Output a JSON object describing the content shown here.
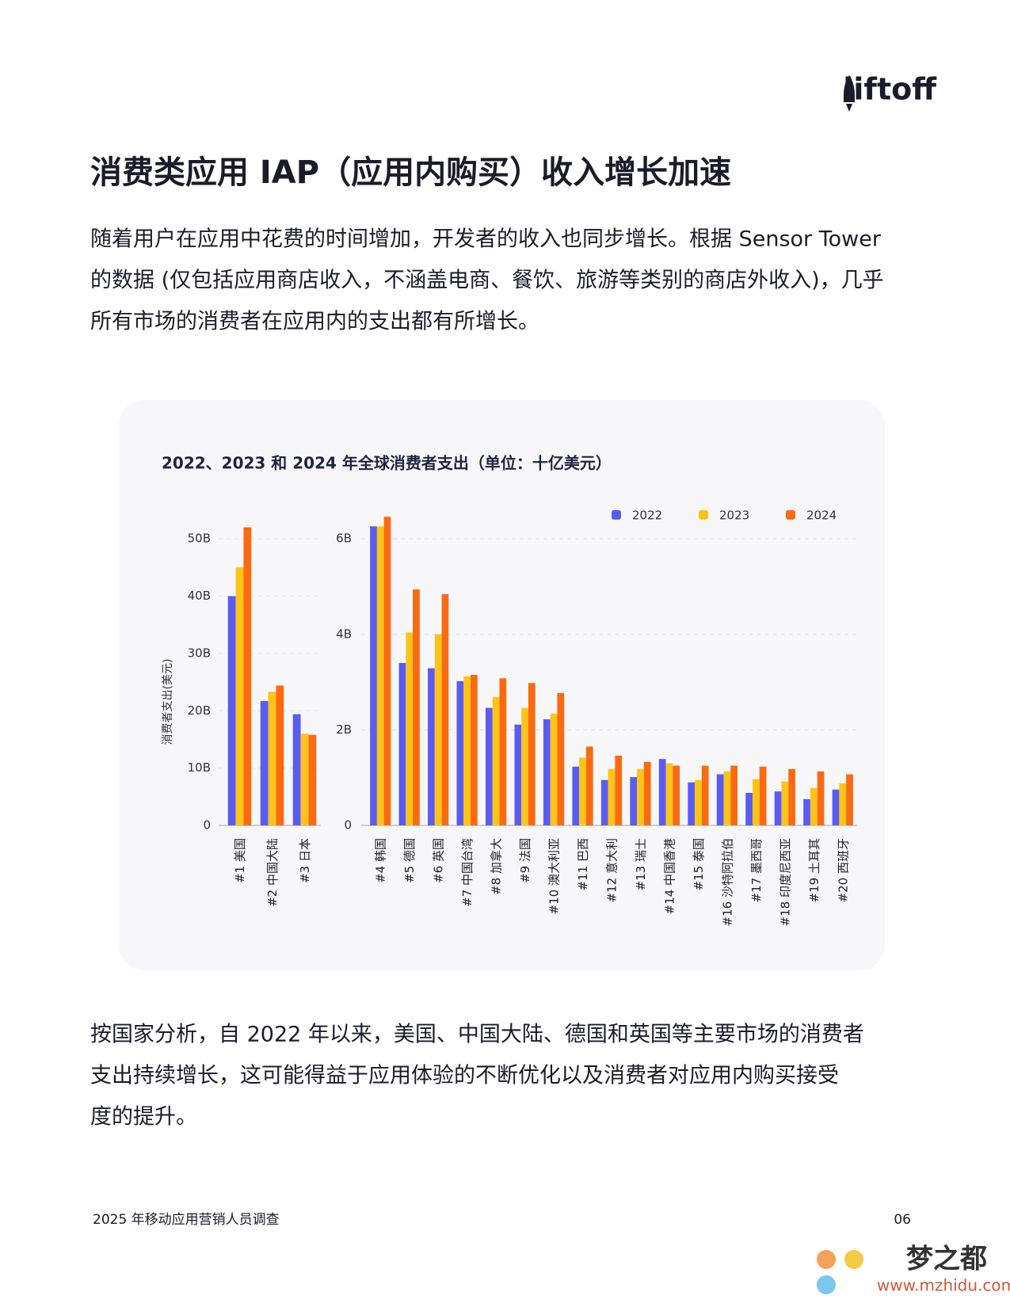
{
  "header": {
    "logo": "liftoff"
  },
  "heading": "消费类应用 IAP（应用内购买）收入增长加速",
  "paragraph1": [
    "随着用户在应用中花费的时间增加，开发者的收入也同步增长。根据 Sensor Tower",
    "的数据 (仅包括应用商店收入，不涵盖电商、餐饮、旅游等类别的商店外收入)，几乎",
    "所有市场的消费者在应用内的支出都有所增长。"
  ],
  "chart_data": [
    {
      "type": "bar",
      "title": "2022、2023 和 2024 年全球消费者支出（单位：十亿美元）",
      "y_label": "消费者支出(美元)",
      "categories": [
        "#1 美国",
        "#2 中国大陆",
        "#3 日本"
      ],
      "series": [
        {
          "color": "#5a5cf0",
          "values": [
            40,
            21.7,
            19.4
          ]
        },
        {
          "color": "#fcc419",
          "values": [
            45,
            23.3,
            16
          ]
        },
        {
          "color": "#fb6a10",
          "values": [
            52,
            24.4,
            15.8
          ]
        }
      ],
      "ylim": [
        0,
        55
      ],
      "yticks": [
        0,
        {
          "value": 10,
          "label": "10B"
        },
        {
          "value": 20,
          "label": "20B"
        },
        {
          "value": 30,
          "label": "30B"
        },
        {
          "value": 40,
          "label": "40B"
        },
        {
          "value": 50,
          "label": "50B"
        }
      ],
      "grid": true
    },
    {
      "type": "bar",
      "categories": [
        "#4 韩国",
        "#5 德国",
        "#6 英国",
        "#7 中国台湾",
        "#8 加拿大",
        "#9 法国",
        "#10 澳大利亚",
        "#11 巴西",
        "#12 意大利",
        "#13 瑞士",
        "#14 中国香港",
        "#15 泰国",
        "#16 沙特阿拉伯",
        "#17 墨西哥",
        "#18 印度尼西亚",
        "#19 土耳其",
        "#20 西班牙"
      ],
      "series": [
        {
          "name": "2022",
          "color": "#5a5cf0",
          "values": [
            6.26,
            3.4,
            3.29,
            3.02,
            2.46,
            2.11,
            2.22,
            1.23,
            0.95,
            1.01,
            1.39,
            0.9,
            1.07,
            0.68,
            0.71,
            0.55,
            0.75
          ]
        },
        {
          "name": "2023",
          "color": "#fcc419",
          "values": [
            6.26,
            4.04,
            4.0,
            3.12,
            2.69,
            2.46,
            2.34,
            1.42,
            1.18,
            1.18,
            1.3,
            0.95,
            1.13,
            0.97,
            0.92,
            0.78,
            0.88
          ]
        },
        {
          "name": "2024",
          "color": "#fb6a10",
          "values": [
            6.46,
            4.94,
            4.84,
            3.15,
            3.08,
            2.98,
            2.77,
            1.65,
            1.46,
            1.33,
            1.25,
            1.25,
            1.25,
            1.23,
            1.18,
            1.13,
            1.07
          ]
        }
      ],
      "ylim": [
        0,
        6.5
      ],
      "yticks": [
        0,
        {
          "value": 2,
          "label": "2B"
        },
        {
          "value": 4,
          "label": "4B"
        },
        {
          "value": 6,
          "label": "6B"
        }
      ],
      "grid": true,
      "legend": "top-right"
    }
  ],
  "paragraph2": [
    "按国家分析，自 2022 年以来，美国、中国大陆、德国和英国等主要市场的消费者",
    "支出持续增长，这可能得益于应用体验的不断优化以及消费者对应用内购买接受",
    "度的提升。"
  ],
  "footer": {
    "report": "2025 年移动应用营销人员调查",
    "page": "06"
  },
  "watermark": {
    "name": "梦之都",
    "url": "www.mzhidu.com"
  }
}
